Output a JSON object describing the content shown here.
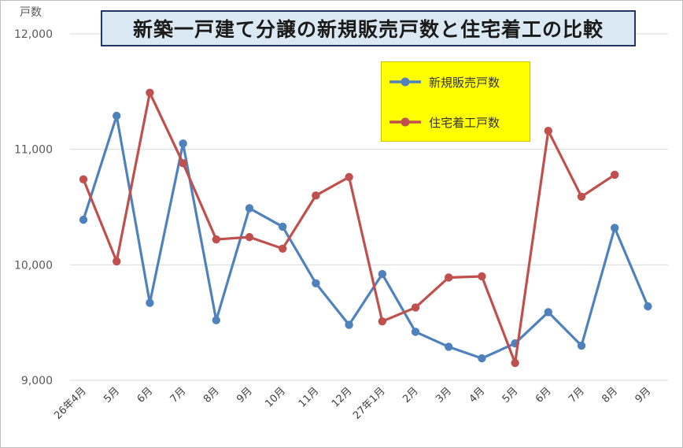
{
  "chart_data": {
    "type": "line",
    "title": "新築一戸建て分譲の新規販売戸数と住宅着工の比較",
    "ylabel": "戸数",
    "ylim": [
      9000,
      12000
    ],
    "yticks": [
      "9,000",
      "10,000",
      "11,000",
      "12,000"
    ],
    "categories": [
      "26年4月",
      "5月",
      "6月",
      "7月",
      "8月",
      "9月",
      "10月",
      "11月",
      "12月",
      "27年1月",
      "2月",
      "3月",
      "4月",
      "5月",
      "6月",
      "7月",
      "8月",
      "9月"
    ],
    "grid": true,
    "legend_position": "top-right",
    "series": [
      {
        "name": "新規販売戸数",
        "color": "#4f81bd",
        "values": [
          10390,
          11290,
          9670,
          11050,
          9520,
          10490,
          10330,
          9840,
          9480,
          9920,
          9420,
          9290,
          9190,
          9320,
          9590,
          9300,
          10320,
          9640
        ]
      },
      {
        "name": "住宅着工戸数",
        "color": "#c0504d",
        "values": [
          10740,
          10030,
          11490,
          10880,
          10220,
          10240,
          10140,
          10600,
          10760,
          9510,
          9630,
          9890,
          9900,
          9150,
          11160,
          10590,
          10780,
          null
        ]
      }
    ]
  }
}
